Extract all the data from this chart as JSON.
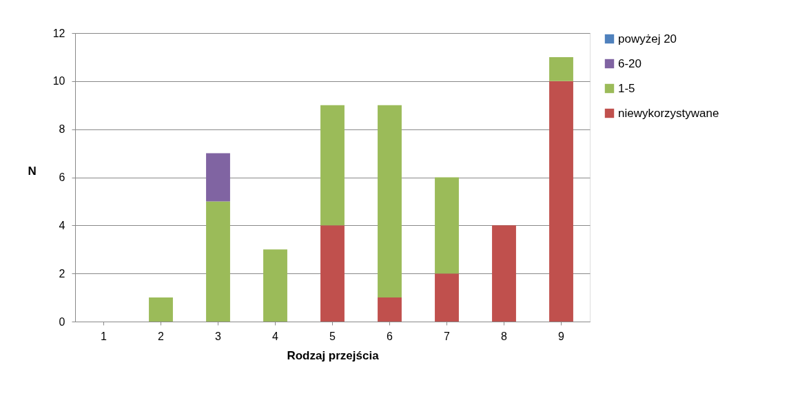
{
  "chart_data": {
    "type": "bar",
    "stacked": true,
    "xlabel": "Rodzaj przejścia",
    "ylabel": "N",
    "categories": [
      "1",
      "2",
      "3",
      "4",
      "5",
      "6",
      "7",
      "8",
      "9"
    ],
    "series": [
      {
        "name": "niewykorzystywane",
        "color": "#c0504d",
        "values": [
          0,
          0,
          0,
          0,
          4,
          1,
          2,
          4,
          10
        ]
      },
      {
        "name": "1-5",
        "color": "#9bbb59",
        "values": [
          0,
          1,
          5,
          3,
          5,
          8,
          4,
          0,
          1
        ]
      },
      {
        "name": "6-20",
        "color": "#8064a2",
        "values": [
          0,
          0,
          2,
          0,
          0,
          0,
          0,
          0,
          0
        ]
      },
      {
        "name": "powyżej 20",
        "color": "#4f81bd",
        "values": [
          0,
          0,
          0,
          0,
          0,
          0,
          0,
          0,
          0
        ]
      }
    ],
    "ylim": [
      0,
      12
    ],
    "yticks": [
      0,
      2,
      4,
      6,
      8,
      10,
      12
    ],
    "grid": "y",
    "legend": "right"
  }
}
